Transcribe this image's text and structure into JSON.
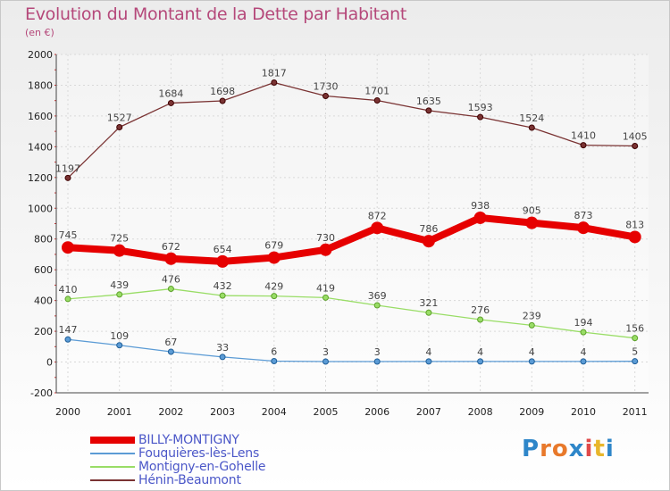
{
  "title": "Evolution du Montant de la Dette par Habitant",
  "subtitle": "(en €)",
  "logo": {
    "text": "Proxiti",
    "colors": [
      "#2e86c9",
      "#e8792b",
      "#e8792b",
      "#2e86c9",
      "#e04a4a",
      "#e8b62b",
      "#2e86c9"
    ]
  },
  "chart_data": {
    "type": "line",
    "x": [
      "2000",
      "2001",
      "2002",
      "2003",
      "2004",
      "2005",
      "2006",
      "2007",
      "2008",
      "2009",
      "2010",
      "2011"
    ],
    "ylim": [
      -200,
      2000
    ],
    "yticks": [
      "-200",
      "0",
      "200",
      "400",
      "600",
      "800",
      "1000",
      "1200",
      "1400",
      "1600",
      "1800",
      "2000"
    ],
    "grid": true,
    "legend_position": "bottom-left",
    "series": [
      {
        "name": "BILLY-MONTIGNY",
        "color": "#e60000",
        "values": [
          745,
          725,
          672,
          654,
          679,
          730,
          872,
          786,
          938,
          905,
          873,
          813
        ],
        "labels": [
          "745",
          "725",
          "672",
          "654",
          "679",
          "730",
          "872",
          "786",
          "938",
          "905",
          "873",
          "813"
        ]
      },
      {
        "name": "Fouquières-lès-Lens",
        "color": "#5b9bd5",
        "values": [
          147,
          109,
          67,
          33,
          6,
          3,
          3,
          4,
          4,
          4,
          4,
          5
        ],
        "labels": [
          "147",
          "109",
          "67",
          "33",
          "6",
          "3",
          "3",
          "4",
          "4",
          "4",
          "4",
          "5"
        ]
      },
      {
        "name": "Montigny-en-Gohelle",
        "color": "#99dd66",
        "values": [
          410,
          439,
          476,
          432,
          429,
          419,
          369,
          321,
          276,
          239,
          194,
          156
        ],
        "labels": [
          "410",
          "439",
          "476",
          "432",
          "429",
          "419",
          "369",
          "321",
          "276",
          "239",
          "194",
          "156"
        ]
      },
      {
        "name": "Hénin-Beaumont",
        "color": "#7a3333",
        "values": [
          1197,
          1527,
          1684,
          1698,
          1817,
          1730,
          1701,
          1635,
          1593,
          1524,
          1410,
          1405
        ],
        "labels": [
          "1197",
          "1527",
          "1684",
          "1698",
          "1817",
          "1730",
          "1701",
          "1635",
          "1593",
          "1524",
          "1410",
          "1405"
        ]
      }
    ]
  }
}
